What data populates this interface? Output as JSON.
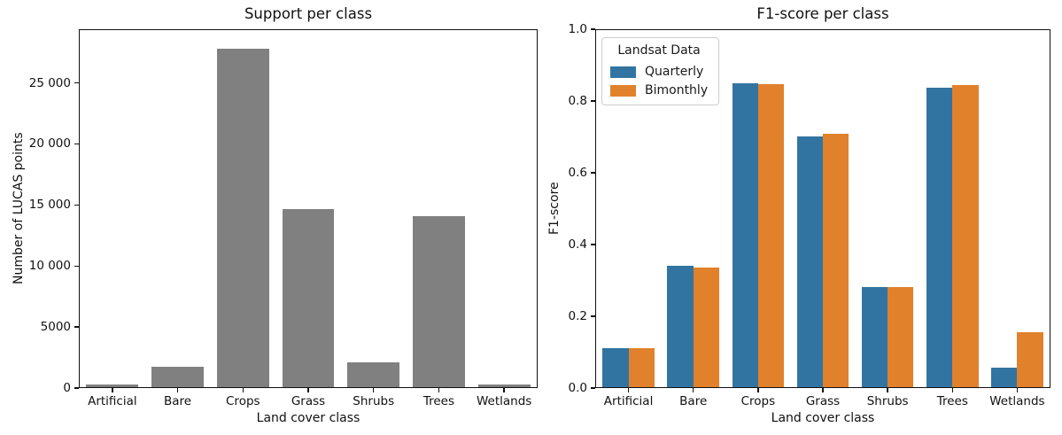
{
  "chart_data": [
    {
      "type": "bar",
      "title": "Support per class",
      "xlabel": "Land cover class",
      "ylabel": "Number of LUCAS points",
      "categories": [
        "Artificial",
        "Bare",
        "Crops",
        "Grass",
        "Shrubs",
        "Trees",
        "Wetlands"
      ],
      "series": [
        {
          "name": "Support",
          "color": "#808080",
          "values": [
            200,
            1650,
            27900,
            14650,
            2050,
            14050,
            200
          ]
        }
      ],
      "ylim": [
        0,
        29400
      ],
      "yticks": {
        "values": [
          0,
          5000,
          10000,
          15000,
          20000,
          25000
        ],
        "labels": [
          "0",
          "5000",
          "10 000",
          "15 000",
          "20 000",
          "25 000"
        ]
      },
      "grid": false,
      "legend": null,
      "group_fraction": 0.8
    },
    {
      "type": "bar",
      "title": "F1-score per class",
      "xlabel": "Land cover class",
      "ylabel": "F1-score",
      "categories": [
        "Artificial",
        "Bare",
        "Crops",
        "Grass",
        "Shrubs",
        "Trees",
        "Wetlands"
      ],
      "series": [
        {
          "name": "Quarterly",
          "color": "#3274a1",
          "values": [
            0.108,
            0.341,
            0.852,
            0.702,
            0.281,
            0.839,
            0.055
          ]
        },
        {
          "name": "Bimonthly",
          "color": "#e1812c",
          "values": [
            0.108,
            0.335,
            0.849,
            0.71,
            0.281,
            0.845,
            0.155
          ]
        }
      ],
      "ylim": [
        0,
        1.0
      ],
      "yticks": {
        "values": [
          0,
          0.2,
          0.4,
          0.6,
          0.8,
          1.0
        ],
        "labels": [
          "0.0",
          "0.2",
          "0.4",
          "0.6",
          "0.8",
          "1.0"
        ]
      },
      "grid": false,
      "legend": {
        "title": "Landsat Data",
        "position": "upper-left"
      },
      "group_fraction": 0.8
    }
  ]
}
